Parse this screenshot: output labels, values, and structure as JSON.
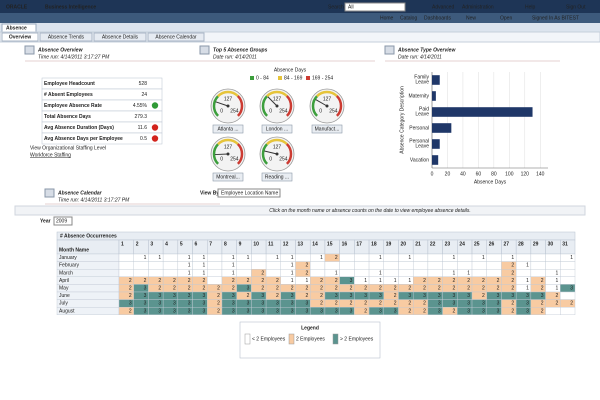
{
  "header": {
    "brand": "ORACLE",
    "product": "Business Intelligence",
    "search_label": "Search",
    "search_scope": "All",
    "links": [
      "Advanced",
      "Administration",
      "Help",
      "Sign Out"
    ]
  },
  "toolbar": {
    "links": [
      "Home",
      "Catalog",
      "Dashboards",
      "New",
      "Open",
      "Signed In As BITEST"
    ]
  },
  "dashboard_tab": "Absence",
  "page_tabs": [
    "Overview",
    "Absence Trends",
    "Absence Details",
    "Absence Calendar"
  ],
  "overview": {
    "title": "Absence Overview",
    "time_run": "Time run: 4/14/2011 3:17:27 PM",
    "rows": [
      {
        "label": "Employee Headcount",
        "value": "528"
      },
      {
        "label": "# Absent Employees",
        "value": "24"
      },
      {
        "label": "Employee Absence Rate",
        "value": "4.55%",
        "indicator": "#2f9a36"
      },
      {
        "label": "Total Absence Days",
        "value": "279.3"
      },
      {
        "label": "Avg Absence Duration (Days)",
        "value": "11.6",
        "indicator": "#d2231c"
      },
      {
        "label": "Avg Absence Days per Employee",
        "value": "0.5",
        "indicator": "#d2231c"
      }
    ],
    "links": [
      "View Organizational Staffing Level",
      "Workforce Staffing"
    ]
  },
  "panels": [
    {
      "title": "Top 5 Absence Groups",
      "date_run": "Date run: 4/14/2011"
    },
    {
      "title": "Absence Type Overview",
      "date_run": "Date run: 4/14/2011"
    }
  ],
  "chart_data": [
    {
      "type": "gauge",
      "title": "Absence Days",
      "range": [
        0,
        254
      ],
      "ticks": [
        0,
        127,
        254
      ],
      "bands": [
        {
          "label": "0 - 84",
          "from": 0,
          "to": 84,
          "color": "#3c9e3c"
        },
        {
          "label": "84 - 169",
          "from": 84,
          "to": 169,
          "color": "#e6c43a"
        },
        {
          "label": "169 - 254",
          "from": 169,
          "to": 254,
          "color": "#cc3b32"
        }
      ],
      "categories": [
        "Atlanta ...",
        "London ...",
        "Manufact...",
        "Montreal...",
        "Reading ..."
      ],
      "values": [
        60,
        85,
        70,
        40,
        55
      ]
    },
    {
      "type": "hbar",
      "ylabel": "Absence Category Description",
      "xlabel": "Absence Days",
      "categories": [
        "Family Leave",
        "Maternity",
        "Paid Leave",
        "Personal",
        "Personal Leave",
        "Vacation"
      ],
      "values": [
        10,
        5,
        130,
        25,
        10,
        8
      ],
      "color": "#1f3768",
      "xlim": [
        0,
        150
      ],
      "xticks": [
        0,
        20,
        40,
        60,
        80,
        100,
        120,
        140
      ],
      "grid": true
    }
  ],
  "calendar": {
    "title": "Absence Calendar",
    "time_run": "Time run: 4/14/2011 3:17:27 PM",
    "view_by_label": "View By",
    "view_by": "Employee Location Name",
    "instruction": "Click on the month name or absence counts on the date to view employee absence details.",
    "year_label": "Year",
    "year": "2009",
    "measure": "# Absence Occurrences",
    "row_header": "Month Name",
    "days": [
      1,
      2,
      3,
      4,
      5,
      6,
      7,
      8,
      9,
      10,
      11,
      12,
      13,
      14,
      15,
      16,
      17,
      18,
      19,
      20,
      21,
      22,
      23,
      24,
      25,
      26,
      27,
      28,
      29,
      30,
      31
    ],
    "months": [
      "January",
      "February",
      "March",
      "April",
      "May",
      "June",
      "July",
      "August"
    ],
    "counts": [
      [
        null,
        1,
        1,
        null,
        1,
        1,
        null,
        1,
        1,
        null,
        1,
        1,
        null,
        1,
        2,
        null,
        null,
        1,
        null,
        1,
        null,
        null,
        1,
        null,
        1,
        null,
        1,
        null,
        null,
        null,
        1
      ],
      [
        null,
        null,
        null,
        null,
        1,
        1,
        null,
        1,
        null,
        null,
        null,
        1,
        2,
        null,
        null,
        null,
        null,
        null,
        null,
        null,
        null,
        null,
        null,
        null,
        null,
        null,
        2,
        1,
        null,
        null,
        null
      ],
      [
        null,
        null,
        null,
        null,
        1,
        1,
        null,
        1,
        null,
        2,
        null,
        1,
        2,
        null,
        1,
        null,
        null,
        1,
        null,
        null,
        null,
        null,
        1,
        1,
        null,
        null,
        2,
        null,
        null,
        1,
        null
      ],
      [
        2,
        2,
        2,
        2,
        2,
        2,
        null,
        2,
        2,
        2,
        2,
        1,
        1,
        2,
        2,
        3,
        1,
        1,
        1,
        1,
        2,
        2,
        2,
        2,
        2,
        2,
        2,
        1,
        2,
        1,
        null
      ],
      [
        2,
        3,
        2,
        2,
        2,
        2,
        2,
        2,
        3,
        2,
        2,
        2,
        2,
        2,
        2,
        2,
        2,
        2,
        2,
        2,
        2,
        2,
        2,
        2,
        2,
        2,
        2,
        1,
        2,
        1,
        3
      ],
      [
        2,
        3,
        3,
        3,
        3,
        3,
        2,
        3,
        2,
        3,
        2,
        3,
        2,
        2,
        3,
        3,
        3,
        3,
        2,
        3,
        3,
        3,
        3,
        3,
        2,
        3,
        3,
        3,
        3,
        2,
        null
      ],
      [
        3,
        3,
        3,
        3,
        3,
        3,
        2,
        3,
        3,
        3,
        3,
        3,
        3,
        2,
        2,
        2,
        2,
        2,
        2,
        2,
        2,
        3,
        3,
        3,
        3,
        3,
        2,
        3,
        2,
        2,
        2
      ],
      [
        2,
        3,
        3,
        3,
        3,
        3,
        2,
        3,
        3,
        3,
        3,
        3,
        3,
        3,
        3,
        3,
        2,
        3,
        3,
        2,
        2,
        3,
        2,
        3,
        3,
        3,
        2,
        3,
        2,
        null,
        null
      ]
    ],
    "legend": {
      "title": "Legend",
      "value": 2,
      "items": [
        {
          "label": "< 2 Employees",
          "color": "#ffffff"
        },
        {
          "label": "2 Employees",
          "color": "#f8cba2"
        },
        {
          "label": "> 2 Employees",
          "color": "#5b948f"
        }
      ]
    }
  }
}
